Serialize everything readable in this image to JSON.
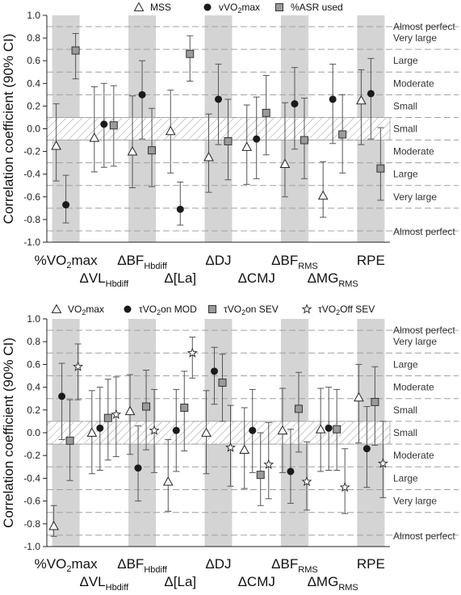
{
  "chart_data": [
    {
      "type": "scatter",
      "ylabel": "Correlation coefficient (90% CI)",
      "ylim": [
        -1.0,
        1.0
      ],
      "yticks": [
        "1.0",
        "0.8",
        "0.6",
        "0.4",
        "0.2",
        "0.0",
        "-0.2",
        "-0.4",
        "-0.6",
        "-0.8",
        "-1.0"
      ],
      "categories": [
        {
          "main": "%VO",
          "sub": "2",
          "rest": "max",
          "sub_baseline": true
        },
        {
          "main": "ΔVL",
          "sub": "Hbdiff"
        },
        {
          "main": "ΔBF",
          "sub": "Hbdiff"
        },
        {
          "main": "Δ[La]",
          "sub": ""
        },
        {
          "main": "ΔDJ",
          "sub": ""
        },
        {
          "main": "ΔCMJ",
          "sub": ""
        },
        {
          "main": "ΔBF",
          "sub": "RMS"
        },
        {
          "main": "ΔMG",
          "sub": "RMS"
        },
        {
          "main": "RPE",
          "sub": ""
        }
      ],
      "series": [
        {
          "name": "MSS",
          "marker": "triangle",
          "points": [
            {
              "cat": 0,
              "y": -0.15,
              "lo": -0.46,
              "hi": 0.22
            },
            {
              "cat": 1,
              "y": -0.08,
              "lo": -0.38,
              "hi": 0.37
            },
            {
              "cat": 2,
              "y": -0.2,
              "lo": -0.52,
              "hi": 0.29
            },
            {
              "cat": 3,
              "y": -0.02,
              "lo": -0.39,
              "hi": 0.34
            },
            {
              "cat": 4,
              "y": -0.25,
              "lo": -0.56,
              "hi": 0.13
            },
            {
              "cat": 5,
              "y": -0.16,
              "lo": -0.49,
              "hi": 0.21
            },
            {
              "cat": 6,
              "y": -0.31,
              "lo": -0.6,
              "hi": 0.23
            },
            {
              "cat": 7,
              "y": -0.59,
              "lo": -0.78,
              "hi": -0.29
            },
            {
              "cat": 8,
              "y": 0.25,
              "lo": -0.14,
              "hi": 0.52
            }
          ]
        },
        {
          "name": "vVO2max",
          "marker": "circle",
          "points": [
            {
              "cat": 0,
              "y": -0.67,
              "lo": -0.83,
              "hi": -0.41
            },
            {
              "cat": 1,
              "y": 0.04,
              "lo": -0.34,
              "hi": 0.4
            },
            {
              "cat": 2,
              "y": 0.3,
              "lo": -0.09,
              "hi": 0.6
            },
            {
              "cat": 3,
              "y": -0.71,
              "lo": -0.85,
              "hi": -0.47
            },
            {
              "cat": 4,
              "y": 0.26,
              "lo": -0.14,
              "hi": 0.57
            },
            {
              "cat": 5,
              "y": -0.09,
              "lo": -0.44,
              "hi": 0.28
            },
            {
              "cat": 6,
              "y": 0.22,
              "lo": -0.18,
              "hi": 0.54
            },
            {
              "cat": 7,
              "y": 0.26,
              "lo": -0.13,
              "hi": 0.57
            },
            {
              "cat": 8,
              "y": 0.31,
              "lo": -0.09,
              "hi": 0.62
            }
          ]
        },
        {
          "name": "%ASR used",
          "marker": "square",
          "points": [
            {
              "cat": 0,
              "y": 0.69,
              "lo": 0.44,
              "hi": 0.84
            },
            {
              "cat": 1,
              "y": 0.03,
              "lo": -0.33,
              "hi": 0.38
            },
            {
              "cat": 2,
              "y": -0.19,
              "lo": -0.51,
              "hi": 0.18
            },
            {
              "cat": 3,
              "y": 0.66,
              "lo": 0.42,
              "hi": 0.82
            },
            {
              "cat": 4,
              "y": -0.11,
              "lo": -0.45,
              "hi": 0.26
            },
            {
              "cat": 5,
              "y": 0.14,
              "lo": -0.23,
              "hi": 0.47
            },
            {
              "cat": 6,
              "y": -0.1,
              "lo": -0.44,
              "hi": 0.27
            },
            {
              "cat": 7,
              "y": -0.05,
              "lo": -0.39,
              "hi": 0.3
            },
            {
              "cat": 8,
              "y": -0.35,
              "lo": -0.63,
              "hi": 0.01
            }
          ]
        }
      ],
      "zones": [
        {
          "label": "Almost perfect",
          "y": 0.9
        },
        {
          "label": "Very large",
          "y": 0.7
        },
        {
          "label": "Large",
          "y": 0.5
        },
        {
          "label": "Moderate",
          "y": 0.3
        },
        {
          "label": "Small",
          "y": 0.1
        },
        {
          "label": "Small",
          "y": -0.1
        },
        {
          "label": "Moderate",
          "y": -0.3
        },
        {
          "label": "Large",
          "y": -0.5
        },
        {
          "label": "Very large",
          "y": -0.7
        },
        {
          "label": "Almost perfect",
          "y": -0.9
        }
      ]
    },
    {
      "type": "scatter",
      "ylabel": "Correlation coefficient (90% CI)",
      "ylim": [
        -1.0,
        1.0
      ],
      "yticks": [
        "1.0",
        "0.8",
        "0.6",
        "0.4",
        "0.2",
        "0.0",
        "-0.2",
        "-0.4",
        "-0.6",
        "-0.8",
        "-1.0"
      ],
      "categories": [
        {
          "main": "%VO",
          "sub": "2",
          "rest": "max",
          "sub_baseline": true
        },
        {
          "main": "ΔVL",
          "sub": "Hbdiff"
        },
        {
          "main": "ΔBF",
          "sub": "Hbdiff"
        },
        {
          "main": "Δ[La]",
          "sub": ""
        },
        {
          "main": "ΔDJ",
          "sub": ""
        },
        {
          "main": "ΔCMJ",
          "sub": ""
        },
        {
          "main": "ΔBF",
          "sub": "RMS"
        },
        {
          "main": "ΔMG",
          "sub": "RMS"
        },
        {
          "main": "RPE",
          "sub": ""
        }
      ],
      "series": [
        {
          "name": "VO2max",
          "marker": "triangle",
          "points": [
            {
              "cat": 0,
              "y": -0.82,
              "lo": -0.91,
              "hi": -0.64
            },
            {
              "cat": 1,
              "y": 0.0,
              "lo": -0.36,
              "hi": 0.37
            },
            {
              "cat": 2,
              "y": 0.19,
              "lo": -0.19,
              "hi": 0.51
            },
            {
              "cat": 3,
              "y": -0.43,
              "lo": -0.69,
              "hi": -0.06
            },
            {
              "cat": 4,
              "y": 0.0,
              "lo": -0.36,
              "hi": 0.37
            },
            {
              "cat": 5,
              "y": -0.15,
              "lo": -0.49,
              "hi": 0.22
            },
            {
              "cat": 6,
              "y": 0.02,
              "lo": -0.35,
              "hi": 0.39
            },
            {
              "cat": 7,
              "y": 0.03,
              "lo": -0.34,
              "hi": 0.39
            },
            {
              "cat": 8,
              "y": 0.31,
              "lo": -0.09,
              "hi": 0.6
            }
          ]
        },
        {
          "name": "τVO2on MOD",
          "marker": "circle",
          "points": [
            {
              "cat": 0,
              "y": 0.32,
              "lo": -0.06,
              "hi": 0.61
            },
            {
              "cat": 1,
              "y": 0.04,
              "lo": -0.33,
              "hi": 0.4
            },
            {
              "cat": 2,
              "y": -0.31,
              "lo": -0.6,
              "hi": 0.06
            },
            {
              "cat": 3,
              "y": 0.02,
              "lo": -0.34,
              "hi": 0.38
            },
            {
              "cat": 4,
              "y": 0.54,
              "lo": 0.25,
              "hi": 0.75
            },
            {
              "cat": 5,
              "y": 0.02,
              "lo": -0.35,
              "hi": 0.38
            },
            {
              "cat": 6,
              "y": -0.34,
              "lo": -0.62,
              "hi": 0.03
            },
            {
              "cat": 7,
              "y": 0.04,
              "lo": -0.33,
              "hi": 0.4
            },
            {
              "cat": 8,
              "y": -0.14,
              "lo": -0.48,
              "hi": 0.23
            }
          ]
        },
        {
          "name": "τVO2on SEV",
          "marker": "square",
          "points": [
            {
              "cat": 0,
              "y": -0.07,
              "lo": -0.42,
              "hi": 0.29
            },
            {
              "cat": 1,
              "y": 0.13,
              "lo": -0.24,
              "hi": 0.47
            },
            {
              "cat": 2,
              "y": 0.23,
              "lo": -0.15,
              "hi": 0.55
            },
            {
              "cat": 3,
              "y": 0.22,
              "lo": -0.16,
              "hi": 0.54
            },
            {
              "cat": 4,
              "y": 0.44,
              "lo": 0.1,
              "hi": 0.69
            },
            {
              "cat": 5,
              "y": -0.37,
              "lo": -0.64,
              "hi": 0.0
            },
            {
              "cat": 6,
              "y": 0.21,
              "lo": -0.17,
              "hi": 0.53
            },
            {
              "cat": 7,
              "y": 0.03,
              "lo": -0.33,
              "hi": 0.38
            },
            {
              "cat": 8,
              "y": 0.27,
              "lo": -0.11,
              "hi": 0.58
            }
          ]
        },
        {
          "name": "τVO2Off SEV",
          "marker": "star",
          "points": [
            {
              "cat": 0,
              "y": 0.58,
              "lo": 0.29,
              "hi": 0.78
            },
            {
              "cat": 1,
              "y": 0.16,
              "lo": -0.21,
              "hi": 0.49
            },
            {
              "cat": 2,
              "y": 0.02,
              "lo": -0.35,
              "hi": 0.38
            },
            {
              "cat": 3,
              "y": 0.7,
              "lo": 0.48,
              "hi": 0.84
            },
            {
              "cat": 4,
              "y": -0.13,
              "lo": -0.47,
              "hi": 0.24
            },
            {
              "cat": 5,
              "y": -0.28,
              "lo": -0.58,
              "hi": 0.09
            },
            {
              "cat": 6,
              "y": -0.43,
              "lo": -0.68,
              "hi": -0.08
            },
            {
              "cat": 7,
              "y": -0.48,
              "lo": -0.71,
              "hi": -0.14
            },
            {
              "cat": 8,
              "y": -0.27,
              "lo": -0.57,
              "hi": 0.1
            }
          ]
        }
      ],
      "zones": [
        {
          "label": "Almost perfect",
          "y": 0.9
        },
        {
          "label": "Very large",
          "y": 0.7
        },
        {
          "label": "Large",
          "y": 0.5
        },
        {
          "label": "Moderate",
          "y": 0.3
        },
        {
          "label": "Small",
          "y": 0.1
        },
        {
          "label": "Small",
          "y": -0.1
        },
        {
          "label": "Moderate",
          "y": -0.3
        },
        {
          "label": "Large",
          "y": -0.5
        },
        {
          "label": "Very large",
          "y": -0.7
        },
        {
          "label": "Almost perfect",
          "y": -0.9
        }
      ]
    }
  ],
  "legends": [
    [
      {
        "marker": "triangle",
        "parts": [
          {
            "t": "MSS"
          }
        ]
      },
      {
        "marker": "circle",
        "parts": [
          {
            "t": "vVO"
          },
          {
            "t": "2",
            "sub": true
          },
          {
            "t": "max"
          }
        ]
      },
      {
        "marker": "square",
        "parts": [
          {
            "t": "%ASR used"
          }
        ]
      }
    ],
    [
      {
        "marker": "triangle",
        "parts": [
          {
            "t": "VO"
          },
          {
            "t": "2",
            "sub": true
          },
          {
            "t": "max"
          }
        ]
      },
      {
        "marker": "circle",
        "parts": [
          {
            "t": "τVO"
          },
          {
            "t": "2",
            "sub": true
          },
          {
            "t": "on MOD"
          }
        ]
      },
      {
        "marker": "square",
        "parts": [
          {
            "t": "τVO"
          },
          {
            "t": "2",
            "sub": true
          },
          {
            "t": "on SEV"
          }
        ]
      },
      {
        "marker": "star",
        "parts": [
          {
            "t": "τVO"
          },
          {
            "t": "2",
            "sub": true
          },
          {
            "t": "Off SEV"
          }
        ]
      }
    ]
  ],
  "colors": {
    "band": "#d4d4d4",
    "dashed": "#a0a0a0",
    "hatch": "#8a8a8a",
    "marker_fill": "#1a1a1a",
    "square_fill": "#9a9a9a"
  }
}
